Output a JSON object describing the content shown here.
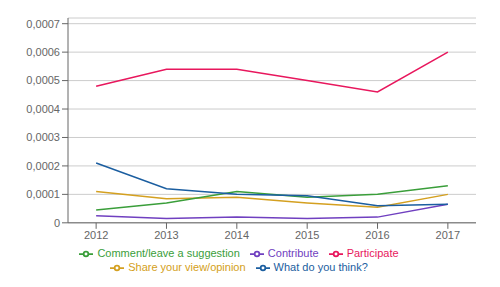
{
  "chart_data": {
    "type": "line",
    "x": [
      2012,
      2013,
      2014,
      2015,
      2016,
      2017
    ],
    "xlim": [
      2011.6,
      2017.4
    ],
    "xticks": [
      2012,
      2013,
      2014,
      2015,
      2016,
      2017
    ],
    "ylim": [
      0,
      0.00072
    ],
    "yticks": [
      0,
      {
        "value": 0.0001,
        "label": "0,0001"
      },
      {
        "value": 0.0002,
        "label": "0,0002"
      },
      {
        "value": 0.0003,
        "label": "0,0003"
      },
      {
        "value": 0.0004,
        "label": "0,0004"
      },
      {
        "value": 0.0005,
        "label": "0,0005"
      },
      {
        "value": 0.0006,
        "label": "0,0006"
      },
      {
        "value": 0.0007,
        "label": "0,0007"
      }
    ],
    "grid": true,
    "legend": "bottom",
    "series": [
      {
        "name": "Participate",
        "color": "#e8175d",
        "values": [
          0.00048,
          0.00054,
          0.00054,
          0.0005,
          0.00046,
          0.0006
        ]
      },
      {
        "name": "Share your view/opinion",
        "color": "#d4a020",
        "values": [
          0.00011,
          8.5e-05,
          9e-05,
          7e-05,
          5.5e-05,
          0.0001
        ]
      },
      {
        "name": "Comment/leave a suggestion",
        "color": "#3a9e3a",
        "values": [
          4.5e-05,
          7e-05,
          0.00011,
          9e-05,
          0.0001,
          0.00013
        ]
      },
      {
        "name": "Contribute",
        "color": "#7040c0",
        "values": [
          2.5e-05,
          1.5e-05,
          2e-05,
          1.5e-05,
          2e-05,
          6.5e-05
        ]
      },
      {
        "name": "What do you think?",
        "color": "#1b5ea0",
        "values": [
          0.00021,
          0.00012,
          0.0001,
          9.5e-05,
          6e-05,
          6.5e-05
        ]
      }
    ]
  }
}
